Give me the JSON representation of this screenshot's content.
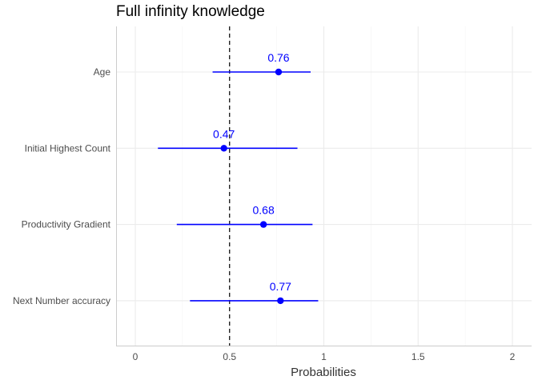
{
  "chart_data": {
    "type": "forest",
    "title": "Full infinity knowledge",
    "xlabel": "Probabilities",
    "ylabel": "",
    "xlim": [
      -0.1,
      2.1
    ],
    "x_ticks": [
      0,
      0.5,
      1,
      1.5,
      2
    ],
    "x_tick_labels": [
      "0",
      "0.5",
      "1",
      "1.5",
      "2"
    ],
    "reference_line": 0.5,
    "reference_line_style": "dashed",
    "grid": true,
    "color": "#0000ff",
    "rows": [
      {
        "label": "Age",
        "estimate": 0.76,
        "lower": 0.41,
        "upper": 0.93,
        "value_label": "0.76"
      },
      {
        "label": "Initial Highest Count",
        "estimate": 0.47,
        "lower": 0.12,
        "upper": 0.86,
        "value_label": "0.47"
      },
      {
        "label": "Productivity Gradient",
        "estimate": 0.68,
        "lower": 0.22,
        "upper": 0.94,
        "value_label": "0.68"
      },
      {
        "label": "Next Number accuracy",
        "estimate": 0.77,
        "lower": 0.29,
        "upper": 0.97,
        "value_label": "0.77"
      }
    ]
  }
}
